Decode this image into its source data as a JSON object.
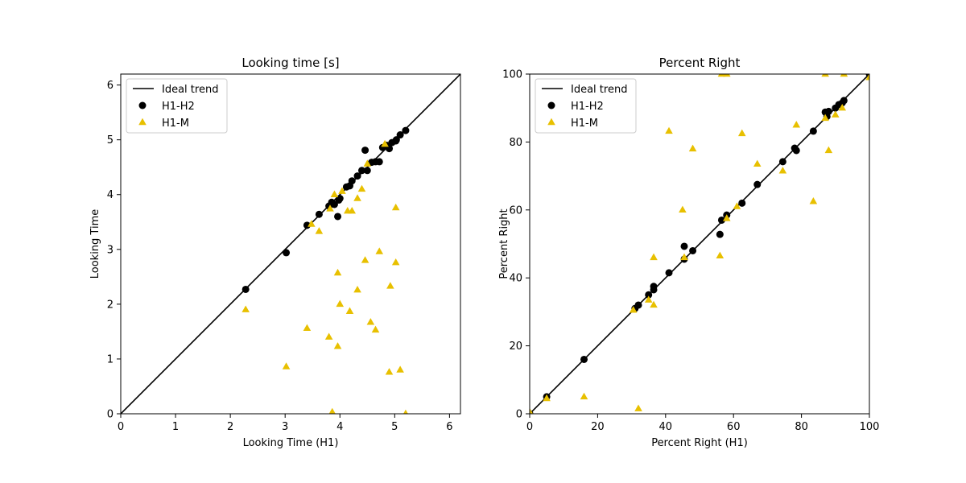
{
  "chart_data": [
    {
      "type": "scatter",
      "title": "Looking time [s]",
      "xlabel": "Looking Time (H1)",
      "ylabel": "Looking Time",
      "xlim": [
        0,
        6.2
      ],
      "ylim": [
        0,
        6.2
      ],
      "xticks": [
        0,
        1,
        2,
        3,
        4,
        5,
        6
      ],
      "yticks": [
        0,
        1,
        2,
        3,
        4,
        5,
        6
      ],
      "legend_position": "top-left",
      "ideal_trend": {
        "name": "Ideal trend",
        "x": [
          0,
          6.2
        ],
        "y": [
          0,
          6.2
        ],
        "color": "#000000"
      },
      "series": [
        {
          "name": "H1-H2",
          "marker": "circle",
          "color": "#000000",
          "points": [
            [
              2.28,
              2.27
            ],
            [
              3.02,
              2.94
            ],
            [
              3.4,
              3.44
            ],
            [
              3.62,
              3.64
            ],
            [
              3.8,
              3.79
            ],
            [
              3.85,
              3.86
            ],
            [
              3.9,
              3.82
            ],
            [
              3.96,
              3.6
            ],
            [
              3.98,
              3.9
            ],
            [
              4.0,
              3.93
            ],
            [
              4.12,
              4.14
            ],
            [
              4.18,
              4.16
            ],
            [
              4.22,
              4.25
            ],
            [
              4.32,
              4.34
            ],
            [
              4.4,
              4.44
            ],
            [
              4.46,
              4.81
            ],
            [
              4.5,
              4.44
            ],
            [
              4.58,
              4.59
            ],
            [
              4.65,
              4.6
            ],
            [
              4.72,
              4.6
            ],
            [
              4.78,
              4.86
            ],
            [
              4.85,
              4.9
            ],
            [
              4.9,
              4.84
            ],
            [
              4.95,
              4.95
            ],
            [
              5.02,
              4.98
            ],
            [
              5.03,
              5.0
            ],
            [
              5.1,
              5.09
            ],
            [
              5.2,
              5.17
            ]
          ]
        },
        {
          "name": "H1-M",
          "marker": "triangle",
          "color": "#e8c000",
          "points": [
            [
              2.28,
              1.9
            ],
            [
              3.02,
              0.86
            ],
            [
              3.4,
              1.56
            ],
            [
              3.48,
              3.46
            ],
            [
              3.62,
              3.33
            ],
            [
              3.8,
              1.4
            ],
            [
              3.82,
              3.74
            ],
            [
              3.86,
              0.03
            ],
            [
              3.9,
              4.0
            ],
            [
              3.96,
              2.57
            ],
            [
              3.96,
              1.23
            ],
            [
              4.0,
              2.0
            ],
            [
              4.04,
              4.06
            ],
            [
              4.14,
              3.7
            ],
            [
              4.18,
              1.87
            ],
            [
              4.22,
              3.7
            ],
            [
              4.32,
              3.93
            ],
            [
              4.32,
              2.26
            ],
            [
              4.4,
              4.1
            ],
            [
              4.46,
              2.8
            ],
            [
              4.5,
              4.56
            ],
            [
              4.56,
              1.67
            ],
            [
              4.65,
              1.53
            ],
            [
              4.72,
              2.96
            ],
            [
              4.82,
              4.92
            ],
            [
              4.9,
              0.76
            ],
            [
              4.92,
              2.33
            ],
            [
              5.02,
              3.76
            ],
            [
              5.02,
              2.76
            ],
            [
              5.1,
              0.8
            ],
            [
              5.2,
              0.0
            ]
          ]
        }
      ]
    },
    {
      "type": "scatter",
      "title": "Percent Right",
      "xlabel": "Percent Right (H1)",
      "ylabel": "Percent Right",
      "xlim": [
        0,
        100
      ],
      "ylim": [
        0,
        100
      ],
      "xticks": [
        0,
        20,
        40,
        60,
        80,
        100
      ],
      "yticks": [
        0,
        20,
        40,
        60,
        80,
        100
      ],
      "legend_position": "top-left",
      "ideal_trend": {
        "name": "Ideal trend",
        "x": [
          0,
          100
        ],
        "y": [
          0,
          100
        ],
        "color": "#000000"
      },
      "series": [
        {
          "name": "H1-H2",
          "marker": "circle",
          "color": "#000000",
          "points": [
            [
              0,
              0
            ],
            [
              5,
              5
            ],
            [
              16,
              16
            ],
            [
              31,
              31
            ],
            [
              32,
              32
            ],
            [
              35,
              35
            ],
            [
              36.5,
              37.5
            ],
            [
              36.5,
              36.5
            ],
            [
              41,
              41.5
            ],
            [
              45.5,
              45.5
            ],
            [
              45.5,
              49.3
            ],
            [
              48,
              48
            ],
            [
              56,
              52.8
            ],
            [
              56.5,
              57
            ],
            [
              58,
              58.5
            ],
            [
              62.5,
              62
            ],
            [
              67,
              67.5
            ],
            [
              74.5,
              74.2
            ],
            [
              78,
              78.2
            ],
            [
              78.5,
              77.5
            ],
            [
              83.5,
              83.2
            ],
            [
              87,
              88.8
            ],
            [
              87.5,
              87.5
            ],
            [
              88,
              89
            ],
            [
              90,
              90
            ],
            [
              91,
              91
            ],
            [
              92,
              91.5
            ],
            [
              92.5,
              92.2
            ],
            [
              100,
              100
            ]
          ]
        },
        {
          "name": "H1-M",
          "marker": "triangle",
          "color": "#e8c000",
          "points": [
            [
              0,
              0.5
            ],
            [
              5,
              4.5
            ],
            [
              16,
              5
            ],
            [
              30.5,
              30.5
            ],
            [
              32,
              1.5
            ],
            [
              35,
              33.5
            ],
            [
              36.5,
              46
            ],
            [
              36.5,
              32
            ],
            [
              41,
              83.2
            ],
            [
              45,
              60
            ],
            [
              45.5,
              46
            ],
            [
              48,
              78
            ],
            [
              56,
              46.5
            ],
            [
              56.5,
              100
            ],
            [
              58,
              100
            ],
            [
              58,
              57.5
            ],
            [
              61,
              61
            ],
            [
              62.5,
              82.5
            ],
            [
              67,
              73.5
            ],
            [
              74.5,
              71.5
            ],
            [
              78.5,
              85
            ],
            [
              83.5,
              62.5
            ],
            [
              87,
              100
            ],
            [
              87,
              87
            ],
            [
              88,
              77.5
            ],
            [
              90,
              88
            ],
            [
              92,
              90
            ],
            [
              92.5,
              100
            ],
            [
              100,
              99
            ]
          ]
        }
      ]
    }
  ]
}
